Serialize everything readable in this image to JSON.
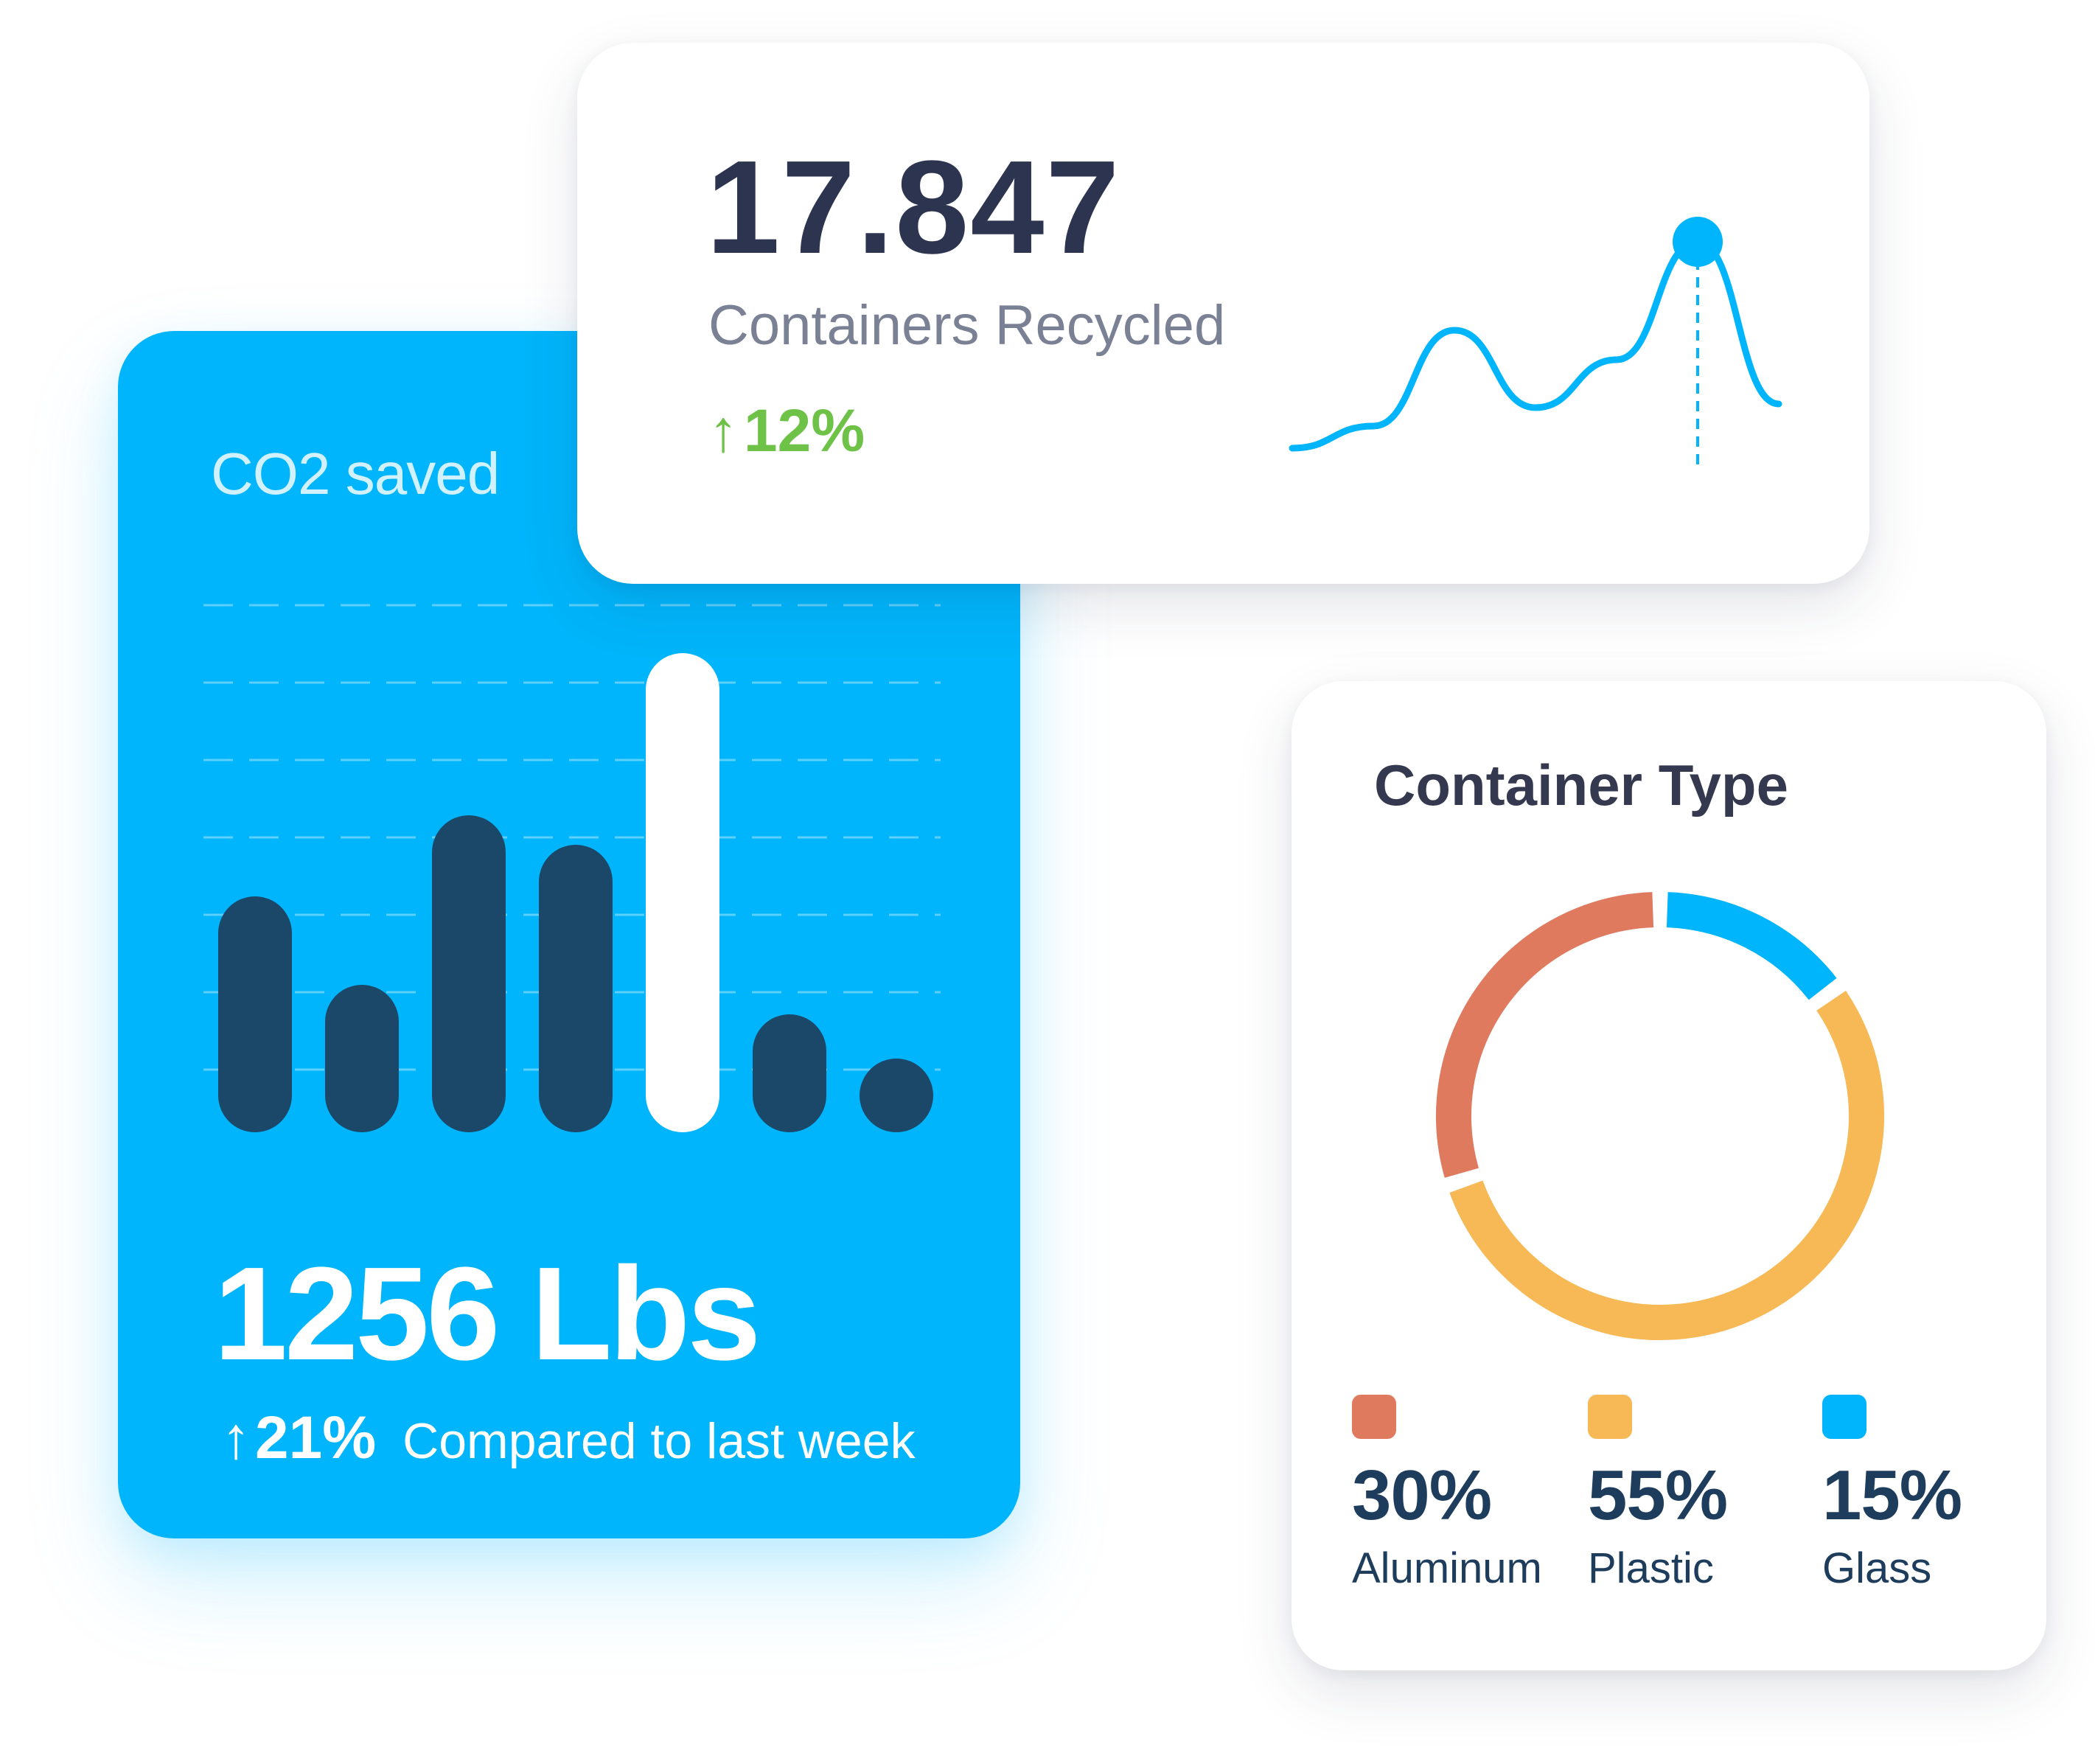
{
  "co2_card": {
    "title": "CO2 saved",
    "value": "1256 Lbs",
    "delta_arrow": "↑",
    "delta": "21%",
    "comparison": "Compared to last week",
    "colors": {
      "background": "#00b5fb",
      "bar": "#1b4869",
      "highlight_bar": "#ffffff",
      "grid": "#5cd0fb"
    },
    "chart_data": {
      "type": "bar",
      "values": [
        3.2,
        2.0,
        4.3,
        3.9,
        6.5,
        1.6,
        1.0
      ],
      "highlight_index": 4,
      "ylim": [
        0,
        7
      ],
      "grid": true
    }
  },
  "recycled_card": {
    "value": "17.847",
    "label": "Containers Recycled",
    "delta_arrow": "↑",
    "delta": "12%",
    "colors": {
      "line": "#00b5fb",
      "delta": "#6ec247"
    },
    "chart_data": {
      "type": "line",
      "values": [
        0.0,
        0.3,
        1.6,
        0.55,
        1.2,
        2.8,
        0.6
      ],
      "marker_index": 5
    }
  },
  "type_card": {
    "title": "Container Type",
    "legend": [
      {
        "pct": "30%",
        "name": "Aluminum",
        "color": "#e07a5f"
      },
      {
        "pct": "55%",
        "name": "Plastic",
        "color": "#f6b955"
      },
      {
        "pct": "15%",
        "name": "Glass",
        "color": "#00b5fb"
      }
    ],
    "chart_data": {
      "type": "pie",
      "categories": [
        "Aluminum",
        "Plastic",
        "Glass"
      ],
      "values": [
        30,
        55,
        15
      ]
    }
  }
}
